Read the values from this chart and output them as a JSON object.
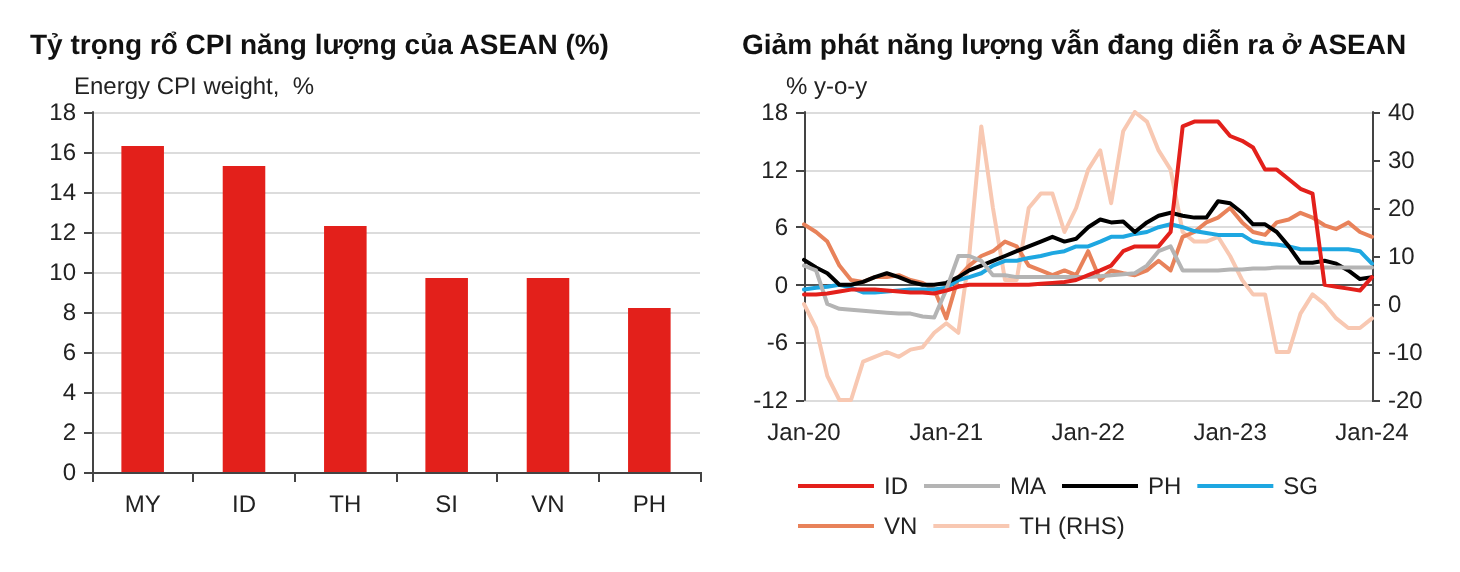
{
  "chart_data": [
    {
      "type": "bar",
      "title": "Tỷ trọng rổ CPI năng lượng của ASEAN (%)",
      "ylabel": "Energy CPI weight,  %",
      "categories": [
        "MY",
        "ID",
        "TH",
        "SI",
        "VN",
        "PH"
      ],
      "values": [
        16.3,
        15.3,
        12.3,
        9.7,
        9.7,
        8.2
      ],
      "color": "#e3201b",
      "ylim": [
        0,
        18
      ],
      "yticks": [
        0,
        2,
        4,
        6,
        8,
        10,
        12,
        14,
        16,
        18
      ],
      "grid": "y"
    },
    {
      "type": "line",
      "title": "Giảm phát năng lượng vẫn đang diễn ra ở ASEAN",
      "ylabel": "% y-o-y",
      "marker": "none",
      "grid": "y",
      "legend": "bottom",
      "x": [
        "2020-01",
        "2020-02",
        "2020-03",
        "2020-04",
        "2020-05",
        "2020-06",
        "2020-07",
        "2020-08",
        "2020-09",
        "2020-10",
        "2020-11",
        "2020-12",
        "2021-01",
        "2021-02",
        "2021-03",
        "2021-04",
        "2021-05",
        "2021-06",
        "2021-07",
        "2021-08",
        "2021-09",
        "2021-10",
        "2021-11",
        "2021-12",
        "2022-01",
        "2022-02",
        "2022-03",
        "2022-04",
        "2022-05",
        "2022-06",
        "2022-07",
        "2022-08",
        "2022-09",
        "2022-10",
        "2022-11",
        "2022-12",
        "2023-01",
        "2023-02",
        "2023-03",
        "2023-04",
        "2023-05",
        "2023-06",
        "2023-07",
        "2023-08",
        "2023-09",
        "2023-10",
        "2023-11",
        "2023-12",
        "2024-01"
      ],
      "xlim": [
        "2020-01",
        "2024-01"
      ],
      "xticks": [
        {
          "value": "2020-01",
          "label": "Jan-20"
        },
        {
          "value": "2021-01",
          "label": "Jan-21"
        },
        {
          "value": "2022-01",
          "label": "Jan-22"
        },
        {
          "value": "2023-01",
          "label": "Jan-23"
        },
        {
          "value": "2024-01",
          "label": "Jan-24"
        }
      ],
      "ylim": [
        -12,
        18
      ],
      "yticks": [
        -12,
        -6,
        0,
        6,
        12,
        18
      ],
      "y2lim": [
        -20,
        40
      ],
      "y2ticks": [
        -20,
        -10,
        0,
        10,
        20,
        30,
        40
      ],
      "series": [
        {
          "name": "ID",
          "color": "#e3201b",
          "values": [
            -1,
            -1,
            -0.9,
            -0.7,
            -0.5,
            -0.5,
            -0.5,
            -0.6,
            -0.7,
            -0.8,
            -0.8,
            -0.9,
            -0.6,
            -0.2,
            0,
            0,
            0,
            0,
            0,
            0,
            0.1,
            0.2,
            0.3,
            0.5,
            1,
            1.5,
            2,
            3.5,
            4,
            4,
            4,
            5.5,
            16.5,
            17,
            17,
            17,
            15.5,
            15,
            14.3,
            12,
            12,
            11,
            10,
            9.5,
            0,
            -0.2,
            -0.4,
            -0.6,
            0.8
          ]
        },
        {
          "name": "MA",
          "color": "#b4b4b4",
          "values": [
            2,
            1.5,
            -2,
            -2.5,
            -2.6,
            -2.7,
            -2.8,
            -2.9,
            -3,
            -3,
            -3.3,
            -3.4,
            -0.5,
            3,
            3,
            2.5,
            1,
            1,
            0.8,
            0.8,
            0.8,
            0.8,
            0.8,
            0.8,
            0.8,
            0.9,
            1,
            1.1,
            1.2,
            2,
            3.5,
            4,
            1.5,
            1.5,
            1.5,
            1.5,
            1.6,
            1.6,
            1.7,
            1.7,
            1.8,
            1.8,
            1.8,
            1.8,
            1.8,
            1.8,
            1.8,
            1.8,
            1.8
          ]
        },
        {
          "name": "PH",
          "color": "#000000",
          "values": [
            2.6,
            1.8,
            1.2,
            0,
            0,
            0.3,
            0.8,
            1.2,
            0.8,
            0.3,
            0,
            0,
            0.2,
            0.8,
            1.5,
            2,
            2.5,
            3,
            3.5,
            4,
            4.5,
            5,
            4.5,
            4.8,
            6,
            6.8,
            6.5,
            6.6,
            5.5,
            6.5,
            7.2,
            7.5,
            7.2,
            7,
            7,
            8.7,
            8.5,
            7.5,
            6.3,
            6.3,
            5.5,
            4,
            2.3,
            2.3,
            2.5,
            2.2,
            1.5,
            0.6,
            0.8
          ]
        },
        {
          "name": "SG",
          "color": "#1ea7e1",
          "values": [
            -0.5,
            -0.3,
            -0.2,
            0,
            -0.3,
            -0.8,
            -0.8,
            -0.7,
            -0.6,
            -0.5,
            -0.5,
            -0.5,
            -0.3,
            0.5,
            0.8,
            1.2,
            2,
            2.5,
            2.5,
            2.8,
            3,
            3.3,
            3.5,
            4,
            4,
            4.5,
            5,
            5,
            5.3,
            5.5,
            6,
            6.3,
            6,
            5.6,
            5.4,
            5.2,
            5.2,
            5.2,
            4.5,
            4.3,
            4.2,
            4,
            3.7,
            3.7,
            3.7,
            3.7,
            3.7,
            3.5,
            2.2
          ]
        },
        {
          "name": "VN",
          "color": "#e8825a",
          "values": [
            6.3,
            5.5,
            4.5,
            2,
            0.5,
            0.3,
            0.8,
            0.8,
            1,
            0.5,
            0.2,
            -0.5,
            -3.5,
            0.8,
            2,
            3,
            3.5,
            4.5,
            4,
            2,
            1.5,
            1,
            1.5,
            1,
            3.5,
            0.5,
            1.5,
            1.2,
            1,
            1.5,
            2.5,
            1.5,
            5,
            5.5,
            6.5,
            7,
            8,
            6.5,
            5.5,
            5.2,
            6.5,
            6.8,
            7.5,
            7,
            6.2,
            5.8,
            6.5,
            5.5,
            5
          ]
        },
        {
          "name": "TH (RHS)",
          "axis": "y2",
          "color": "#f8c8b2",
          "values": [
            0,
            -5,
            -15,
            -20,
            -20,
            -12,
            -11,
            -10,
            -11,
            -9.5,
            -9,
            -6,
            -4,
            -6,
            10,
            37,
            20,
            5,
            5,
            20,
            23,
            23,
            15,
            20,
            28,
            32,
            21,
            36,
            40,
            38,
            32,
            28,
            15,
            13,
            13,
            14,
            10,
            5,
            2,
            2,
            -10,
            -10,
            -2,
            2,
            0,
            -3,
            -5,
            -5,
            -3
          ]
        }
      ]
    }
  ]
}
